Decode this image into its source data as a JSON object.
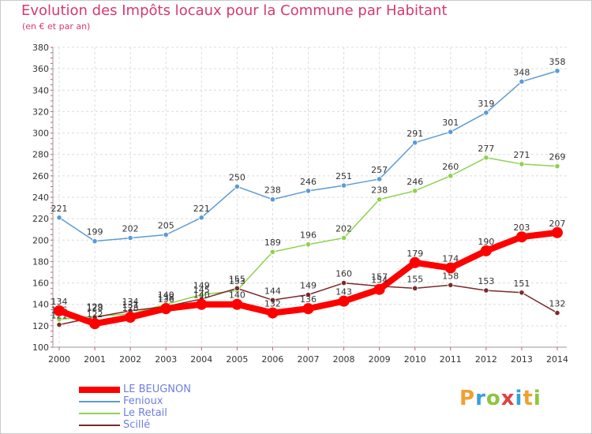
{
  "header": {
    "title": "Evolution des Impôts locaux pour la Commune par Habitant",
    "subtitle": "(en € et par an)"
  },
  "logo": {
    "text": "Proxiti",
    "colors": [
      "#f0a030",
      "#3aa0d8",
      "#8cc63f",
      "#e04040",
      "#3aa0d8",
      "#f0a030",
      "#8cc63f"
    ]
  },
  "chart_data": {
    "type": "line",
    "title": "Evolution des Impôts locaux pour la Commune par Habitant",
    "subtitle": "(en € et par an)",
    "x": [
      "2000",
      "2001",
      "2002",
      "2003",
      "2004",
      "2005",
      "2006",
      "2007",
      "2008",
      "2009",
      "2010",
      "2011",
      "2012",
      "2013",
      "2014"
    ],
    "ylim": [
      100,
      380
    ],
    "yticks": [
      100,
      120,
      140,
      160,
      180,
      200,
      220,
      240,
      260,
      280,
      300,
      320,
      340,
      360,
      380
    ],
    "grid": true,
    "legend_position": "bottom-left",
    "series": [
      {
        "name": "Fenioux",
        "color": "#5b9bd5",
        "values": [
          221,
          199,
          202,
          205,
          221,
          250,
          238,
          246,
          251,
          257,
          291,
          301,
          319,
          348,
          358
        ]
      },
      {
        "name": "Le Retail",
        "color": "#8fd14f",
        "values": [
          126,
          129,
          131,
          140,
          149,
          153,
          189,
          196,
          202,
          238,
          246,
          260,
          277,
          271,
          269
        ]
      },
      {
        "name": "Scillé",
        "color": "#7a2a2a",
        "values": [
          121,
          128,
          134,
          138,
          145,
          155,
          144,
          149,
          160,
          157,
          155,
          158,
          153,
          151,
          132
        ]
      },
      {
        "name": "LE BEUGNON",
        "color": "#ff0000",
        "values": [
          134,
          122,
          128,
          136,
          140,
          140,
          132,
          136,
          143,
          154,
          179,
          174,
          190,
          203,
          207
        ]
      }
    ]
  }
}
